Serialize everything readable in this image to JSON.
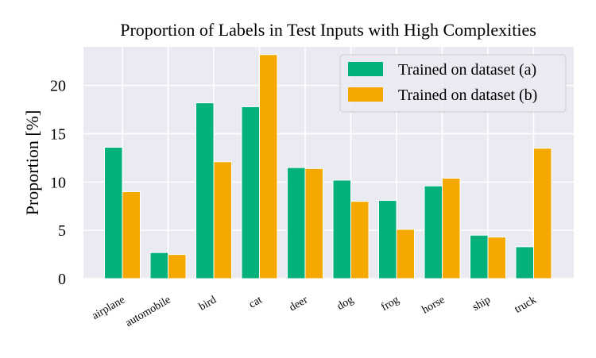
{
  "chart_data": {
    "type": "bar",
    "title": "Proportion of Labels in Test Inputs with High Complexities",
    "xlabel": "",
    "ylabel": "Proportion [%]",
    "ylim": [
      0,
      24
    ],
    "yticks": [
      0,
      5,
      10,
      15,
      20
    ],
    "grid": true,
    "legend_position": "top-right",
    "categories": [
      "airplane",
      "automobile",
      "bird",
      "cat",
      "deer",
      "dog",
      "frog",
      "horse",
      "ship",
      "truck"
    ],
    "highlighted_categories": [
      "cat",
      "truck"
    ],
    "colors": {
      "series_a": "#04b07b",
      "series_b": "#f5a800",
      "highlight_label": "#e0451b",
      "plot_background": "#eaeaf2",
      "grid": "#ffffff"
    },
    "series": [
      {
        "name": "Trained on dataset (a)",
        "values": [
          13.6,
          2.7,
          18.2,
          17.8,
          11.5,
          10.2,
          8.1,
          9.6,
          4.5,
          3.3
        ]
      },
      {
        "name": "Trained on dataset (b)",
        "values": [
          9.0,
          2.5,
          12.1,
          23.2,
          11.4,
          8.0,
          5.1,
          10.4,
          4.3,
          13.5
        ]
      }
    ]
  }
}
